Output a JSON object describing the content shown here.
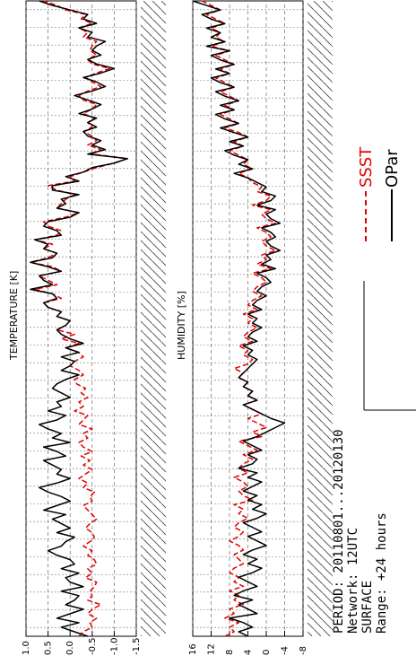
{
  "chart_data": [
    {
      "type": "line",
      "title": "TEMPERATURE [K]",
      "ylim": [
        -1.5,
        1.0
      ],
      "y_ticks": [
        "1.0",
        "0.5",
        "0.0",
        "-0.5",
        "-1.0",
        "-1.5"
      ],
      "grid": true,
      "series": [
        {
          "name": "SSST",
          "color": "#e00000",
          "style": "dashed",
          "values": [
            -0.2,
            -0.3,
            -0.5,
            -0.45,
            -0.6,
            -0.4,
            -0.5,
            -0.7,
            -0.4,
            -0.5,
            -0.45,
            -0.55,
            -0.6,
            -0.35,
            -0.5,
            -0.4,
            -0.6,
            -0.55,
            -0.4,
            -0.5,
            -0.3,
            -0.45,
            -0.55,
            -0.5,
            -0.35,
            -0.45,
            -0.6,
            -0.5,
            -0.4,
            -0.3,
            -0.5,
            -0.45,
            -0.55,
            -0.3,
            -0.4,
            -0.2,
            -0.35,
            -0.5,
            -0.3,
            -0.45,
            -0.25,
            -0.5,
            -0.3,
            -0.2,
            -0.4,
            -0.3,
            -0.5,
            -0.2,
            -0.3,
            -0.4,
            -0.1,
            -0.3,
            -0.2,
            -0.4,
            -0.25,
            -0.35,
            -0.15,
            -0.1,
            -0.3,
            -0.2,
            0.0,
            -0.1,
            -0.3,
            -0.2,
            0.1,
            -0.2,
            0.2,
            -0.1,
            0.3,
            0.1,
            0.0,
            0.3,
            0.2,
            0.5,
            0.6,
            0.2,
            0.4,
            0.8,
            0.3,
            0.5,
            0.7,
            0.2,
            0.4,
            0.9,
            0.5,
            0.3,
            0.6,
            0.4,
            0.8,
            0.3,
            0.2,
            0.5,
            0.6,
            0.1,
            -0.2,
            0.3,
            0.2,
            0.1,
            -0.1,
            0.3,
            0.5,
            -0.1,
            0.0,
            -0.3,
            -0.6,
            -1.0,
            -1.3,
            -0.5,
            -0.7,
            -0.4,
            -0.6,
            -0.5,
            -0.3,
            -0.5,
            -0.4,
            -0.55,
            -0.3,
            -0.5,
            -0.6,
            -0.3,
            -0.2,
            -0.4,
            -0.7,
            -0.5,
            -0.35,
            -0.6,
            -0.9,
            -0.5,
            -0.4,
            -0.6,
            -0.45,
            -0.5,
            -0.6,
            -0.3,
            -0.4,
            -0.2,
            -0.5,
            -0.25,
            -0.35,
            0.1,
            0.3,
            0.6
          ]
        },
        {
          "name": "OPar",
          "color": "#000000",
          "style": "solid",
          "values": [
            -0.4,
            -0.1,
            0.2,
            -0.2,
            0.3,
            0.0,
            -0.3,
            0.1,
            -0.1,
            -0.2,
            0.2,
            -0.3,
            0.0,
            0.1,
            -0.2,
            0.2,
            -0.1,
            0.0,
            0.3,
            0.5,
            0.2,
            0.1,
            -0.1,
            0.3,
            0.0,
            0.2,
            0.4,
            0.1,
            0.6,
            0.3,
            0.0,
            0.2,
            0.5,
            0.7,
            0.3,
            0.0,
            0.3,
            0.2,
            0.4,
            0.6,
            0.1,
            0.3,
            0.6,
            0.0,
            0.4,
            0.2,
            0.5,
            0.7,
            0.3,
            0.1,
            0.5,
            0.2,
            0.3,
            0.0,
            0.2,
            0.4,
            0.3,
            0.1,
            -0.2,
            0.2,
            0.0,
            -0.1,
            0.2,
            -0.2,
            0.1,
            -0.3,
            0.0,
            0.2,
            0.3,
            0.1,
            0.0,
            0.3,
            0.2,
            0.5,
            0.6,
            0.3,
            0.4,
            0.9,
            0.4,
            0.6,
            0.7,
            0.2,
            0.5,
            0.9,
            0.4,
            0.3,
            0.6,
            0.5,
            0.8,
            0.2,
            0.3,
            0.6,
            0.5,
            0.0,
            -0.2,
            0.3,
            0.1,
            0.2,
            -0.2,
            0.4,
            0.4,
            -0.2,
            0.1,
            -0.3,
            -0.5,
            -1.0,
            -1.3,
            -0.4,
            -0.8,
            -0.5,
            -0.7,
            -0.4,
            -0.3,
            -0.6,
            -0.4,
            -0.6,
            -0.2,
            -0.5,
            -0.7,
            -0.4,
            -0.1,
            -0.5,
            -0.8,
            -0.6,
            -0.3,
            -0.7,
            -1.0,
            -0.6,
            -0.4,
            -0.7,
            -0.5,
            -0.6,
            -0.8,
            -0.4,
            -0.5,
            -0.2,
            -0.6,
            -0.3,
            -0.4,
            0.0,
            0.4,
            0.7
          ]
        }
      ]
    },
    {
      "type": "line",
      "title": "HUMIDITY [%]",
      "ylim": [
        -8,
        16
      ],
      "y_ticks": [
        "16",
        "12",
        "8",
        "4",
        "0",
        "-4",
        "-8"
      ],
      "grid": true,
      "series": [
        {
          "name": "SSST",
          "color": "#e00000",
          "style": "dashed",
          "values": [
            9,
            7,
            8,
            6,
            9,
            7,
            8,
            5,
            7,
            6,
            8,
            5,
            7,
            6,
            8,
            7,
            5,
            6,
            7,
            5,
            6,
            8,
            6,
            5,
            7,
            6,
            4,
            6,
            5,
            7,
            3,
            5,
            6,
            4,
            5,
            7,
            4,
            6,
            5,
            3,
            5,
            2,
            4,
            6,
            1,
            3,
            0,
            2,
            4,
            1,
            3,
            5,
            2,
            4,
            3,
            5,
            4,
            6,
            5,
            7,
            4,
            3,
            5,
            4,
            6,
            3,
            5,
            4,
            2,
            4,
            3,
            5,
            2,
            4,
            3,
            1,
            3,
            2,
            0,
            1,
            3,
            -1,
            2,
            0,
            1,
            -2,
            0,
            1,
            -1,
            0,
            2,
            -2,
            0,
            1,
            -1,
            3,
            0,
            -1,
            2,
            1,
            3,
            4,
            6,
            3,
            5,
            4,
            6,
            8,
            5,
            7,
            4,
            6,
            9,
            6,
            8,
            10,
            7,
            9,
            6,
            8,
            10,
            7,
            9,
            11,
            8,
            10,
            7,
            9,
            11,
            8,
            12,
            9,
            11,
            10,
            12,
            9,
            11,
            13,
            10,
            12,
            14
          ]
        },
        {
          "name": "OPar",
          "color": "#000000",
          "style": "solid",
          "values": [
            4,
            6,
            3,
            5,
            8,
            2,
            4,
            6,
            3,
            7,
            5,
            2,
            4,
            6,
            3,
            1,
            4,
            2,
            5,
            3,
            0,
            2,
            4,
            1,
            3,
            5,
            2,
            0,
            3,
            1,
            4,
            2,
            5,
            3,
            1,
            4,
            2,
            6,
            3,
            2,
            4,
            1,
            3,
            5,
            2,
            0,
            -2,
            -4,
            -1,
            1,
            3,
            5,
            2,
            4,
            3,
            5,
            4,
            6,
            5,
            4,
            3,
            2,
            4,
            3,
            5,
            2,
            4,
            3,
            1,
            3,
            2,
            4,
            1,
            3,
            2,
            0,
            2,
            1,
            -1,
            0,
            2,
            -2,
            1,
            -1,
            0,
            -3,
            -1,
            0,
            -2,
            -1,
            1,
            -3,
            -1,
            0,
            -2,
            2,
            -1,
            -2,
            1,
            0,
            2,
            4,
            7,
            3,
            6,
            4,
            7,
            9,
            5,
            8,
            4,
            7,
            10,
            6,
            9,
            11,
            7,
            10,
            6,
            9,
            11,
            7,
            10,
            12,
            8,
            11,
            7,
            10,
            12,
            8,
            13,
            9,
            12,
            10,
            13,
            9,
            12,
            14,
            10,
            13,
            16
          ]
        }
      ]
    }
  ],
  "legend": {
    "items": [
      {
        "name": "SSST",
        "color": "#e00000",
        "style": "dashed"
      },
      {
        "name": "OPar",
        "color": "#000000",
        "style": "solid"
      }
    ]
  },
  "info": {
    "period": "PERIOD: 20110801...20120130",
    "network": "Network: 12UTC",
    "surface": "SURFACE",
    "range": "Range: +24 hours"
  }
}
